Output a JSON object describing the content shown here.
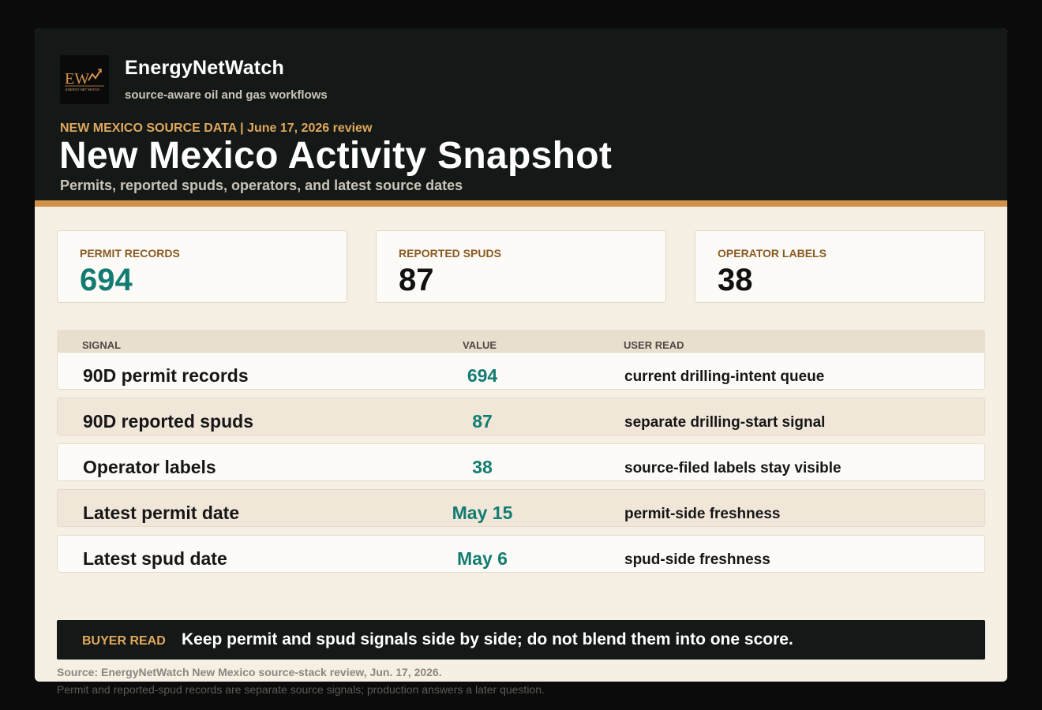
{
  "brand": {
    "logo_letters": "EW",
    "logo_caption": "ENERGY NET WATCH",
    "name": "EnergyNetWatch",
    "tagline": "source-aware oil and gas workflows"
  },
  "header": {
    "eyebrow": "NEW MEXICO SOURCE DATA | June 17, 2026 review",
    "title": "New Mexico Activity Snapshot",
    "subtitle": "Permits, reported spuds, operators, and latest source dates"
  },
  "kpis": [
    {
      "label": "PERMIT RECORDS",
      "value": "694"
    },
    {
      "label": "REPORTED SPUDS",
      "value": "87"
    },
    {
      "label": "OPERATOR LABELS",
      "value": "38"
    }
  ],
  "table": {
    "headers": {
      "signal": "SIGNAL",
      "value": "VALUE",
      "read": "USER READ"
    },
    "rows": [
      {
        "signal": "90D permit records",
        "value": "694",
        "read": "current drilling-intent queue"
      },
      {
        "signal": "90D reported spuds",
        "value": "87",
        "read": "separate drilling-start signal"
      },
      {
        "signal": "Operator labels",
        "value": "38",
        "read": "source-filed labels stay visible"
      },
      {
        "signal": "Latest permit date",
        "value": "May 15",
        "read": "permit-side freshness"
      },
      {
        "signal": "Latest spud date",
        "value": "May 6",
        "read": "spud-side freshness"
      }
    ]
  },
  "buyer": {
    "label": "BUYER READ",
    "text": "Keep permit and spud signals side by side; do not blend them into one score."
  },
  "footer": {
    "source": "Source: EnergyNetWatch New Mexico source-stack review, Jun. 17, 2026.",
    "note": "Permit and reported-spud records are separate source signals; production answers a later question."
  },
  "colors": {
    "accent": "#d2924b",
    "gold": "#e0a85d",
    "teal": "#137c72",
    "dark": "#141816",
    "cream": "#f6efe4"
  },
  "icons": {
    "logo": "energynetwatch-logo"
  }
}
